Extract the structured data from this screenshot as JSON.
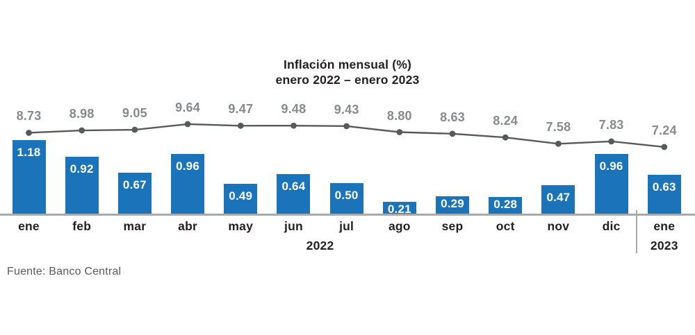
{
  "title": {
    "line1": "Inflación mensual (%)",
    "line2": "enero 2022 – enero 2023"
  },
  "source": "Fuente: Banco Central",
  "colors": {
    "bar_blue": "#1B74B9",
    "line_gray": "#58595B",
    "line_label_gray": "#87898C",
    "axis_gray": "#A7A9AC",
    "text_dark": "#231F20",
    "bar_label_white": "#FFFFFF"
  },
  "chart_data": {
    "type": "bar",
    "title": "Inflación mensual (%) enero 2022 – enero 2023",
    "categories": [
      "ene",
      "feb",
      "mar",
      "abr",
      "may",
      "jun",
      "jul",
      "ago",
      "sep",
      "oct",
      "nov",
      "dic",
      "ene"
    ],
    "year_labels": [
      {
        "label": "2022",
        "from": 0,
        "to": 11
      },
      {
        "label": "2023",
        "from": 12,
        "to": 12
      }
    ],
    "series": [
      {
        "id": "bars",
        "type": "bar",
        "color": "#1B74B9",
        "values": [
          1.18,
          0.92,
          0.67,
          0.96,
          0.49,
          0.64,
          0.5,
          0.21,
          0.29,
          0.28,
          0.47,
          0.96,
          0.63
        ],
        "labels": [
          "1.18",
          "0.92",
          "0.67",
          "0.96",
          "0.49",
          "0.64",
          "0.50",
          "0.21",
          "0.29",
          "0.28",
          "0.47",
          "0.96",
          "0.63"
        ]
      },
      {
        "id": "line",
        "type": "line",
        "color": "#58595B",
        "values": [
          8.73,
          8.98,
          9.05,
          9.64,
          9.47,
          9.48,
          9.43,
          8.8,
          8.63,
          8.24,
          7.58,
          7.83,
          7.24
        ],
        "labels": [
          "8.73",
          "8.98",
          "9.05",
          "9.64",
          "9.47",
          "9.48",
          "9.43",
          "8.80",
          "8.63",
          "8.24",
          "7.58",
          "7.83",
          "7.24"
        ]
      }
    ],
    "grid": false,
    "legend": false,
    "y_axis_visible": false
  }
}
